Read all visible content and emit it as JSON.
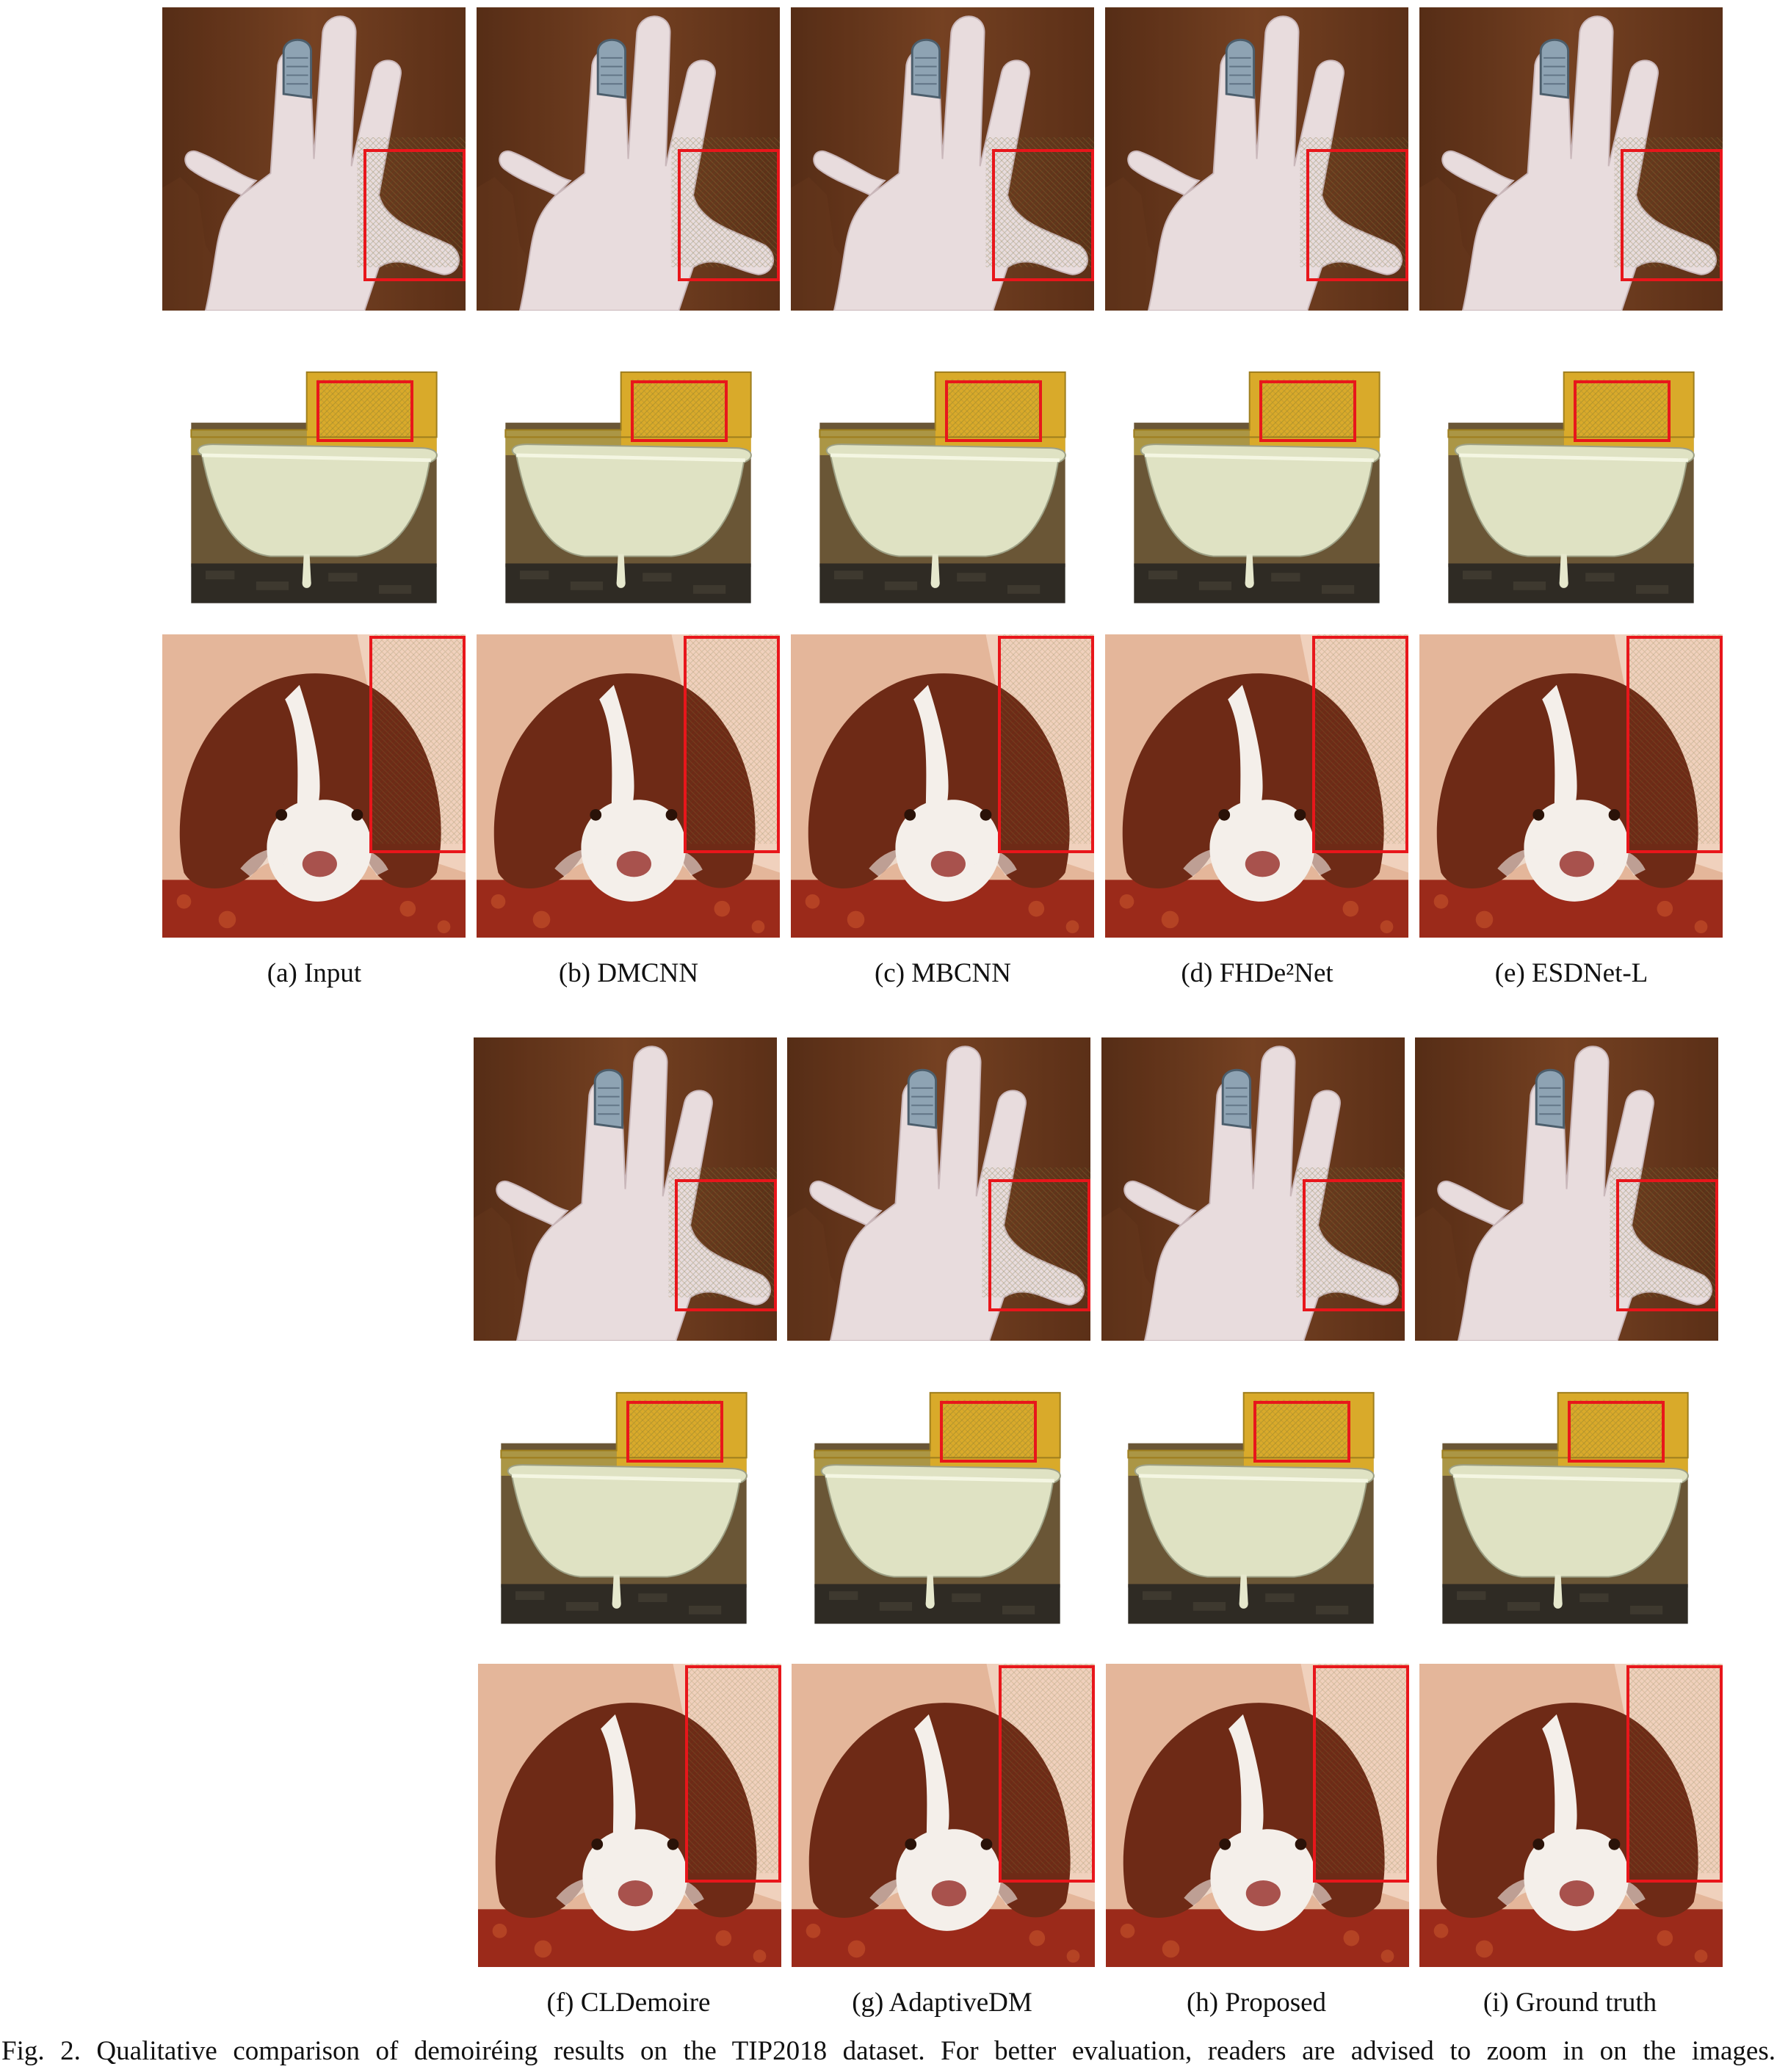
{
  "figure": {
    "caption": "Fig. 2.    Qualitative comparison of demoiréing results on the TIP2018 dataset. For better evaluation, readers are advised to zoom in on the images.",
    "rows": [
      {
        "methods": [
          {
            "id": "a",
            "label": "(a) Input"
          },
          {
            "id": "b",
            "label": "(b) DMCNN"
          },
          {
            "id": "c",
            "label": "(c) MBCNN"
          },
          {
            "id": "d",
            "label": "(d) FHDe²Net"
          },
          {
            "id": "e",
            "label": "(e) ESDNet-L"
          }
        ]
      },
      {
        "methods": [
          {
            "id": "f",
            "label": "(f) CLDemoire"
          },
          {
            "id": "g",
            "label": "(g) AdaptiveDM"
          },
          {
            "id": "h",
            "label": "(h) Proposed"
          },
          {
            "id": "i",
            "label": "(i) Ground truth"
          }
        ]
      }
    ],
    "scenes": [
      "hand",
      "bathtub",
      "dog"
    ],
    "colors": {
      "roi_box": "#e8161b",
      "wood": "#6b3a1f",
      "skin": "#e9dedd",
      "wall_yellow": "#d9aa2a",
      "tub": "#dfe2c3",
      "dog_brown": "#6e2a16",
      "dog_white": "#f4efea",
      "rug": "#9b2a1a"
    }
  }
}
